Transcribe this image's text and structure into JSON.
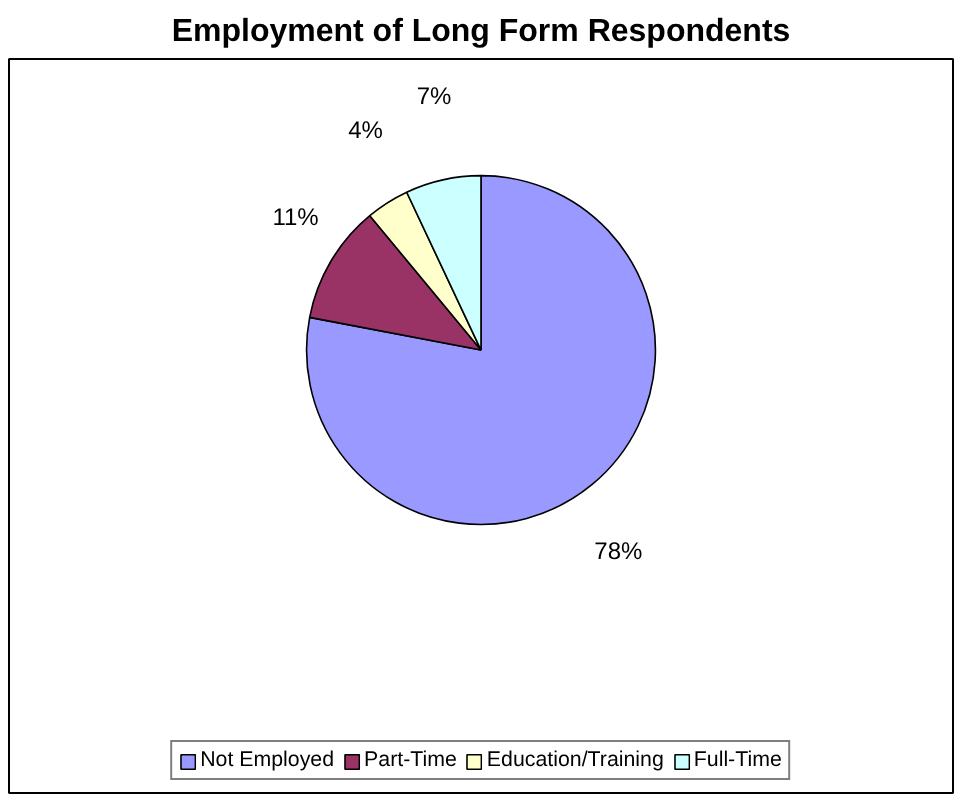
{
  "chart_data": {
    "type": "pie",
    "title": "Employment of Long Form Respondents",
    "categories": [
      "Not Employed",
      "Part-Time",
      "Education/Training",
      "Full-Time"
    ],
    "values": [
      78,
      11,
      4,
      7
    ],
    "colors": [
      "#9999ff",
      "#993366",
      "#ffffcc",
      "#ccffff"
    ],
    "value_labels": [
      "78%",
      "11%",
      "4%",
      "7%"
    ],
    "legend": "bottom"
  }
}
